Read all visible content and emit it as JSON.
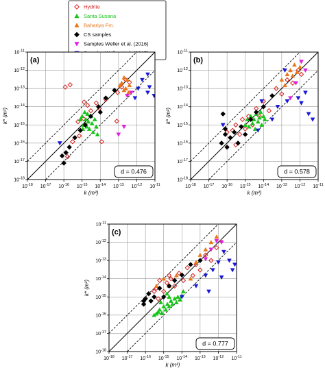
{
  "legend": {
    "entries": [
      {
        "name": "Hydrite",
        "color": "#d62020",
        "marker": "diamond-open"
      },
      {
        "name": "Santa Susana",
        "color": "#18c418",
        "marker": "triangle-up"
      },
      {
        "name": "Bahariya Fm.",
        "color": "#e8761a",
        "marker": "triangle-up"
      },
      {
        "name": "CS samples",
        "color": "#000000",
        "marker": "diamond"
      },
      {
        "name": "Samples Weller et al. (2016)",
        "color": "#e020e0",
        "marker": "triangle-down"
      },
      {
        "name": "Samples Weller et al. (2015)",
        "color": "#1a1ad6",
        "marker": "triangle-down"
      }
    ]
  },
  "chart_data": [
    {
      "type": "scatter",
      "panel_label": "(a)",
      "annotation": "d = 0.476",
      "xlabel": "k (m²)",
      "ylabel": "k* (m²)",
      "x_scale": "log",
      "y_scale": "log",
      "xlim": [
        1e-18,
        1e-11
      ],
      "ylim": [
        1e-18,
        1e-11
      ],
      "ticks": [
        "10-18",
        "10-17",
        "10-16",
        "10-15",
        "10-14",
        "10-13",
        "10-12",
        "10-11"
      ],
      "grid": true,
      "lines": [
        "1:1 solid",
        "±1 decade dashed"
      ],
      "series": [
        {
          "name": "Hydrite",
          "points": [
            [
              1.2e-16,
              1.2e-13
            ],
            [
              2.2e-16,
              1.6e-13
            ],
            [
              6e-16,
              1.5e-15
            ],
            [
              1.3e-15,
              1.8e-14
            ],
            [
              2e-15,
              1.2e-14
            ],
            [
              3e-15,
              6e-15
            ],
            [
              6e-15,
              1.6e-14
            ],
            [
              9e-15,
              8e-15
            ],
            [
              1.2e-15,
              2.2e-15
            ],
            [
              2e-14,
              2.5e-14
            ],
            [
              7e-16,
              2.5e-16
            ],
            [
              1.6e-16,
              1.8e-17
            ],
            [
              3e-16,
              1.2e-16
            ],
            [
              9e-14,
              6e-14
            ],
            [
              1.5e-13,
              1.2e-13
            ],
            [
              2.5e-13,
              3e-13
            ],
            [
              4e-13,
              2.2e-13
            ],
            [
              8e-14,
              1.6e-15
            ],
            [
              1.2e-14,
              1.2e-16
            ]
          ]
        },
        {
          "name": "Santa Susana",
          "points": [
            [
              8e-16,
              2e-15
            ],
            [
              1e-15,
              3e-15
            ],
            [
              1.2e-15,
              1e-15
            ],
            [
              1.4e-15,
              5e-15
            ],
            [
              1.6e-15,
              2e-15
            ],
            [
              1.8e-15,
              8e-16
            ],
            [
              2e-15,
              4e-15
            ],
            [
              2.2e-15,
              1.5e-15
            ],
            [
              2.5e-15,
              6e-16
            ],
            [
              3e-15,
              3e-15
            ],
            [
              3.5e-15,
              1.2e-15
            ],
            [
              4e-15,
              4e-16
            ],
            [
              5e-15,
              2e-15
            ],
            [
              6e-15,
              8e-16
            ],
            [
              7e-15,
              3e-16
            ],
            [
              1.1e-15,
              6e-16
            ]
          ]
        },
        {
          "name": "Bahariya Fm.",
          "points": [
            [
              1.5e-13,
              2e-13
            ],
            [
              2e-13,
              4e-13
            ],
            [
              2.5e-13,
              1e-13
            ],
            [
              3e-13,
              3e-13
            ],
            [
              3.5e-13,
              6e-14
            ],
            [
              4e-13,
              1.5e-13
            ],
            [
              2e-13,
              8e-14
            ],
            [
              1.2e-13,
              1.5e-13
            ]
          ]
        },
        {
          "name": "CS samples",
          "points": [
            [
              8e-17,
              2e-17
            ],
            [
              1e-16,
              8e-18
            ],
            [
              1.3e-16,
              3e-17
            ],
            [
              2e-16,
              6e-17
            ],
            [
              4e-16,
              2e-16
            ],
            [
              8e-16,
              5e-16
            ],
            [
              1.5e-15,
              1e-15
            ],
            [
              3e-15,
              3e-15
            ],
            [
              8e-15,
              1e-14
            ],
            [
              2e-14,
              3e-14
            ],
            [
              6e-14,
              8e-14
            ],
            [
              1e-14,
              5e-15
            ]
          ]
        },
        {
          "name": "Samples Weller et al. (2016)",
          "points": [
            [
              1e-13,
              3e-16
            ],
            [
              2e-13,
              8e-16
            ],
            [
              3e-13,
              4e-14
            ],
            [
              5e-13,
              6e-14
            ]
          ]
        },
        {
          "name": "Samples Weller et al. (2015)",
          "points": [
            [
              6e-17,
              1e-16
            ],
            [
              8e-13,
              3e-14
            ],
            [
              2e-12,
              3e-13
            ],
            [
              4e-12,
              6e-13
            ],
            [
              4e-12,
              6e-14
            ],
            [
              5e-12,
              1.2e-13
            ],
            [
              1.2e-12,
              1e-13
            ],
            [
              9e-12,
              4e-14
            ]
          ]
        }
      ]
    },
    {
      "type": "scatter",
      "panel_label": "(b)",
      "annotation": "d = 0.578",
      "xlabel": "k (m²)",
      "ylabel": "k* (m²)",
      "x_scale": "log",
      "y_scale": "log",
      "xlim": [
        1e-18,
        1e-11
      ],
      "ylim": [
        1e-18,
        1e-11
      ],
      "ticks": [
        "10-18",
        "10-17",
        "10-16",
        "10-15",
        "10-14",
        "10-13",
        "10-12",
        "10-11"
      ],
      "grid": true,
      "lines": [
        "1:1 solid",
        "±1 decade dashed"
      ],
      "series": [
        {
          "name": "Hydrite",
          "points": [
            [
              2e-16,
              5e-16
            ],
            [
              3e-16,
              1e-15
            ],
            [
              5e-16,
              3e-16
            ],
            [
              7e-16,
              2e-15
            ],
            [
              1e-15,
              6e-16
            ],
            [
              1.5e-15,
              3e-15
            ],
            [
              2.5e-15,
              1e-15
            ],
            [
              4e-15,
              8e-15
            ],
            [
              6e-15,
              3e-15
            ],
            [
              1e-14,
              2e-14
            ],
            [
              2e-14,
              6e-15
            ],
            [
              5e-14,
              1e-13
            ],
            [
              1e-13,
              5e-14
            ],
            [
              2e-13,
              3e-13
            ],
            [
              4e-13,
              2e-13
            ],
            [
              8e-13,
              1e-12
            ],
            [
              1.2e-12,
              6e-13
            ],
            [
              3e-16,
              8e-17
            ],
            [
              1e-16,
              4e-16
            ]
          ]
        },
        {
          "name": "Santa Susana",
          "points": [
            [
              1e-15,
              1e-15
            ],
            [
              1.3e-15,
              2e-15
            ],
            [
              1.6e-15,
              8e-16
            ],
            [
              2e-15,
              3e-15
            ],
            [
              2.5e-15,
              1.2e-15
            ],
            [
              3e-15,
              2e-15
            ],
            [
              3.5e-15,
              6e-16
            ],
            [
              4e-15,
              4e-15
            ],
            [
              5e-15,
              1.5e-15
            ],
            [
              6e-15,
              2.5e-15
            ],
            [
              8e-15,
              1e-15
            ],
            [
              1e-14,
              3e-15
            ],
            [
              1.2e-14,
              2e-15
            ],
            [
              7e-15,
              5e-15
            ]
          ]
        },
        {
          "name": "Bahariya Fm.",
          "points": [
            [
              1e-13,
              3e-13
            ],
            [
              2e-13,
              6e-13
            ],
            [
              3e-13,
              1e-12
            ],
            [
              5e-13,
              2e-12
            ],
            [
              7e-13,
              8e-13
            ],
            [
              1e-12,
              1.5e-12
            ],
            [
              1.5e-13,
              1.5e-13
            ],
            [
              4e-13,
              5e-13
            ]
          ]
        },
        {
          "name": "CS samples",
          "points": [
            [
              5e-17,
              1e-16
            ],
            [
              8e-17,
              3e-16
            ],
            [
              1e-16,
              6e-17
            ],
            [
              1.5e-16,
              2e-16
            ],
            [
              2.5e-16,
              4e-16
            ],
            [
              4e-16,
              1e-16
            ],
            [
              6e-16,
              8e-16
            ],
            [
              1e-15,
              3e-16
            ],
            [
              2e-15,
              2e-15
            ],
            [
              4e-15,
              5e-15
            ],
            [
              1e-14,
              1e-14
            ],
            [
              3e-14,
              4e-14
            ],
            [
              8e-17,
              6e-16
            ],
            [
              6e-17,
              4e-15
            ]
          ]
        },
        {
          "name": "Samples Weller et al. (2016)",
          "points": [
            [
              3e-13,
              3e-14
            ],
            [
              6e-13,
              2e-13
            ],
            [
              1.2e-12,
              3e-12
            ],
            [
              2e-12,
              1e-12
            ]
          ]
        },
        {
          "name": "Samples Weller et al. (2015)",
          "points": [
            [
              6e-17,
              1e-15
            ],
            [
              8e-15,
              2e-14
            ],
            [
              6e-14,
              1e-14
            ],
            [
              2e-13,
              2e-14
            ],
            [
              8e-13,
              3e-14
            ],
            [
              1.2e-12,
              1.6e-14
            ],
            [
              2e-12,
              6e-14
            ],
            [
              3e-12,
              4e-15
            ],
            [
              5e-12,
              2e-15
            ],
            [
              1.5e-13,
              1e-12
            ],
            [
              3e-14,
              2e-15
            ],
            [
              5e-15,
              5e-16
            ]
          ]
        }
      ]
    },
    {
      "type": "scatter",
      "panel_label": "(c)",
      "annotation": "d = 0.777",
      "xlabel": "k (m²)",
      "ylabel": "k* (m²)",
      "x_scale": "log",
      "y_scale": "log",
      "xlim": [
        1e-18,
        1e-11
      ],
      "ylim": [
        1e-18,
        1e-11
      ],
      "ticks": [
        "10-18",
        "10-17",
        "10-16",
        "10-15",
        "10-14",
        "10-13",
        "10-12",
        "10-11"
      ],
      "grid": true,
      "lines": [
        "1:1 solid",
        "±1 decade dashed"
      ],
      "series": [
        {
          "name": "Hydrite",
          "points": [
            [
              4e-16,
              3e-15
            ],
            [
              6e-16,
              8e-15
            ],
            [
              1e-15,
              2e-15
            ],
            [
              1.5e-15,
              6e-15
            ],
            [
              2.5e-15,
              1e-14
            ],
            [
              4e-15,
              4e-15
            ],
            [
              7e-15,
              2e-14
            ],
            [
              1.2e-14,
              8e-15
            ],
            [
              2e-14,
              4e-14
            ],
            [
              4e-14,
              1.5e-14
            ],
            [
              6e-14,
              6e-14
            ],
            [
              1e-13,
              3e-14
            ],
            [
              2e-13,
              2e-13
            ],
            [
              4e-13,
              1e-13
            ],
            [
              8e-13,
              5e-13
            ],
            [
              5e-16,
              8e-16
            ],
            [
              3e-16,
              2e-15
            ],
            [
              2e-15,
              1.5e-14
            ]
          ]
        },
        {
          "name": "Santa Susana",
          "points": [
            [
              3e-16,
              1e-16
            ],
            [
              4e-16,
              1.2e-16
            ],
            [
              5e-16,
              1.5e-16
            ],
            [
              6e-16,
              2e-16
            ],
            [
              8e-16,
              1.3e-16
            ],
            [
              1e-15,
              3e-16
            ],
            [
              1.3e-15,
              2e-16
            ],
            [
              1.6e-15,
              4e-16
            ],
            [
              2e-15,
              3e-16
            ],
            [
              2.5e-15,
              6e-16
            ],
            [
              3e-15,
              4e-16
            ],
            [
              4e-15,
              8e-16
            ],
            [
              5e-15,
              5e-16
            ],
            [
              6e-15,
              1e-15
            ],
            [
              8e-15,
              7e-16
            ],
            [
              1e-14,
              1.2e-15
            ],
            [
              1.2e-14,
              2e-15
            ],
            [
              1.5e-15,
              1.5e-15
            ],
            [
              2e-15,
              1e-15
            ],
            [
              7e-16,
              5e-16
            ]
          ]
        },
        {
          "name": "Bahariya Fm.",
          "points": [
            [
              4e-16,
              4e-15
            ],
            [
              1e-15,
              1e-14
            ],
            [
              2e-15,
              4e-15
            ],
            [
              5e-15,
              1.5e-14
            ],
            [
              3e-14,
              1e-14
            ],
            [
              1e-13,
              2e-13
            ],
            [
              2e-13,
              4e-13
            ],
            [
              4e-13,
              1e-12
            ],
            [
              8e-13,
              2e-12
            ],
            [
              1.5e-12,
              1.2e-12
            ],
            [
              6e-14,
              8e-14
            ]
          ]
        },
        {
          "name": "CS samples",
          "points": [
            [
              8e-17,
              4e-16
            ],
            [
              1e-16,
              8e-16
            ],
            [
              1.5e-16,
              1.5e-15
            ],
            [
              2e-16,
              6e-16
            ],
            [
              3e-16,
              1e-15
            ],
            [
              6e-16,
              3e-15
            ],
            [
              1e-15,
              1e-15
            ],
            [
              2e-15,
              4e-15
            ],
            [
              4e-15,
              8e-15
            ],
            [
              1e-14,
              1.6e-14
            ],
            [
              3e-14,
              6e-14
            ],
            [
              1e-13,
              1e-13
            ],
            [
              8e-17,
              6e-16
            ]
          ]
        },
        {
          "name": "Samples Weller et al. (2016)",
          "points": [
            [
              2e-13,
              1.2e-13
            ],
            [
              4e-13,
              4e-13
            ],
            [
              8e-13,
              1.2e-12
            ],
            [
              1.5e-12,
              1e-12
            ]
          ]
        },
        {
          "name": "Samples Weller et al. (2015)",
          "points": [
            [
              6e-14,
              4e-15
            ],
            [
              2e-13,
              1.5e-14
            ],
            [
              5e-13,
              3e-14
            ],
            [
              1e-12,
              8e-14
            ],
            [
              2e-12,
              3e-13
            ],
            [
              4e-12,
              1e-13
            ],
            [
              6e-12,
              3e-14
            ],
            [
              1.5e-12,
              1.2e-14
            ],
            [
              3e-13,
              2e-15
            ],
            [
              8e-12,
              6e-14
            ],
            [
              1e-14,
              1e-15
            ]
          ]
        }
      ]
    }
  ]
}
